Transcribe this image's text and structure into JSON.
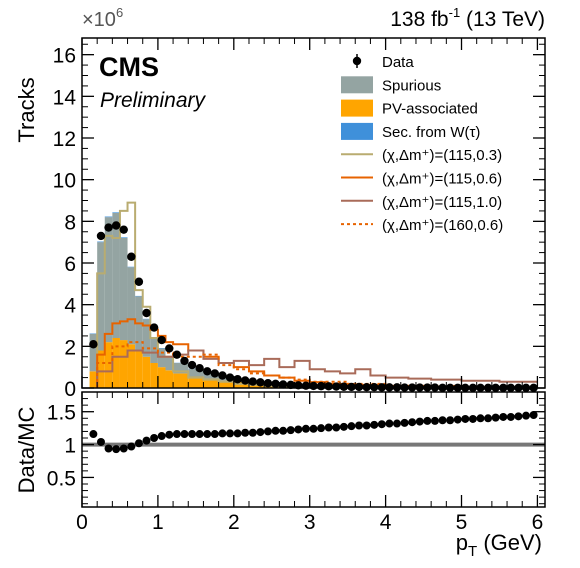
{
  "header": {
    "experiment": "CMS",
    "status": "Preliminary",
    "lumi": "138 fb",
    "lumi_sup": "-1",
    "lumi_energy": " (13 TeV)"
  },
  "chart_data": [
    {
      "type": "bar",
      "panel": "main",
      "ylabel": "Tracks",
      "y_multiplier_base": "×10",
      "y_multiplier_exp": "6",
      "xlim": [
        0,
        6.1
      ],
      "ylim": [
        0,
        16.8
      ],
      "x_ticks": [
        0,
        1,
        2,
        3,
        4,
        5,
        6
      ],
      "y_ticks": [
        0,
        2,
        4,
        6,
        8,
        10,
        12,
        14,
        16
      ],
      "bin_edges": [
        0.1,
        0.2,
        0.3,
        0.4,
        0.5,
        0.6,
        0.7,
        0.8,
        0.9,
        1.0,
        1.1,
        1.2,
        1.4,
        1.6,
        1.8,
        2.0,
        2.2,
        2.4,
        2.6,
        2.8,
        3.0,
        3.3,
        3.6,
        4.0,
        4.5,
        5.0,
        6.0
      ],
      "stacked_series": [
        {
          "name": "PV-associated",
          "color": "#ffa500",
          "values": [
            0.8,
            1.8,
            2.2,
            2.4,
            2.3,
            2.1,
            1.8,
            1.5,
            1.2,
            1.0,
            0.85,
            0.7,
            0.55,
            0.45,
            0.35,
            0.28,
            0.22,
            0.18,
            0.14,
            0.11,
            0.08,
            0.06,
            0.04,
            0.03,
            0.02,
            0.01
          ]
        },
        {
          "name": "Spurious",
          "color": "#94a4a2",
          "values": [
            1.8,
            5.2,
            6.0,
            6.0,
            4.9,
            3.7,
            2.6,
            1.8,
            1.2,
            0.9,
            0.65,
            0.5,
            0.38,
            0.28,
            0.2,
            0.15,
            0.11,
            0.08,
            0.06,
            0.05,
            0.04,
            0.03,
            0.02,
            0.02,
            0.01,
            0.01
          ]
        },
        {
          "name": "Sec. from W(τ)",
          "color": "#3f90da",
          "values": [
            0.02,
            0.03,
            0.03,
            0.03,
            0.03,
            0.02,
            0.02,
            0.02,
            0.02,
            0.02,
            0.01,
            0.01,
            0.01,
            0.01,
            0.01,
            0.01,
            0.01,
            0.01,
            0.01,
            0.01,
            0.01,
            0.01,
            0.01,
            0.01,
            0.01,
            0.01
          ]
        }
      ],
      "data_points": {
        "name": "Data",
        "x": [
          0.15,
          0.25,
          0.35,
          0.45,
          0.55,
          0.65,
          0.75,
          0.85,
          0.95,
          1.05,
          1.15,
          1.25,
          1.35,
          1.45,
          1.55,
          1.65,
          1.75,
          1.85,
          1.95,
          2.05,
          2.15,
          2.25,
          2.35,
          2.45,
          2.55,
          2.65,
          2.75,
          2.85,
          2.95,
          3.05,
          3.15,
          3.25,
          3.35,
          3.45,
          3.55,
          3.65,
          3.75,
          3.85,
          3.95,
          4.05,
          4.15,
          4.25,
          4.35,
          4.45,
          4.55,
          4.65,
          4.75,
          4.85,
          4.95,
          5.05,
          5.15,
          5.25,
          5.35,
          5.45,
          5.55,
          5.65,
          5.75,
          5.85,
          5.95
        ],
        "y": [
          2.1,
          7.3,
          7.7,
          7.8,
          7.6,
          6.3,
          5.1,
          3.6,
          2.9,
          2.3,
          1.9,
          1.6,
          1.3,
          1.1,
          0.95,
          0.8,
          0.7,
          0.6,
          0.5,
          0.42,
          0.36,
          0.31,
          0.27,
          0.23,
          0.2,
          0.17,
          0.15,
          0.13,
          0.11,
          0.1,
          0.09,
          0.08,
          0.07,
          0.06,
          0.05,
          0.05,
          0.04,
          0.04,
          0.03,
          0.03,
          0.03,
          0.02,
          0.02,
          0.02,
          0.02,
          0.02,
          0.01,
          0.01,
          0.01,
          0.01,
          0.01,
          0.01,
          0.01,
          0.01,
          0.01,
          0.01,
          0.01,
          0.01,
          0.01
        ]
      },
      "signal_series": [
        {
          "name": "(χ,Δm⁺)=(115,0.3)",
          "color": "#b9ac70",
          "style": "solid",
          "bin_edges": [
            0.2,
            0.3,
            0.4,
            0.5,
            0.6,
            0.7,
            0.8,
            0.9,
            1.0,
            1.2,
            1.4,
            1.6,
            1.8,
            2.0,
            2.2,
            2.4,
            2.6,
            2.8,
            3.0,
            3.5,
            4.0,
            5.0,
            6.0
          ],
          "values": [
            5.5,
            7.3,
            7.2,
            8.5,
            8.9,
            4.7,
            3.9,
            2.4,
            1.5,
            0.8,
            0.5,
            0.4,
            0.3,
            0.2,
            0.15,
            0.1,
            0.08,
            0.06,
            0.05,
            0.03,
            0.02,
            0.01
          ]
        },
        {
          "name": "(χ,Δm⁺)=(115,0.6)",
          "color": "#e76300",
          "style": "solid",
          "bin_edges": [
            0.2,
            0.3,
            0.4,
            0.5,
            0.6,
            0.7,
            0.8,
            0.9,
            1.0,
            1.1,
            1.2,
            1.4,
            1.6,
            1.8,
            2.0,
            2.2,
            2.4,
            2.6,
            2.8,
            3.0,
            3.2,
            3.5,
            4.0,
            4.5,
            5.0,
            6.0
          ],
          "values": [
            1.6,
            2.6,
            3.1,
            3.2,
            3.3,
            3.1,
            3.0,
            2.8,
            2.5,
            2.2,
            2.1,
            1.8,
            1.5,
            1.2,
            1.0,
            0.8,
            0.6,
            0.5,
            0.35,
            0.28,
            0.2,
            0.15,
            0.1,
            0.06,
            0.03
          ]
        },
        {
          "name": "(χ,Δm⁺)=(115,1.0)",
          "color": "#a96b59",
          "style": "solid",
          "bin_edges": [
            0.2,
            0.4,
            0.6,
            0.8,
            1.0,
            1.2,
            1.4,
            1.6,
            1.8,
            2.0,
            2.2,
            2.4,
            2.6,
            2.8,
            3.0,
            3.2,
            3.4,
            3.6,
            3.8,
            4.0,
            4.3,
            4.6,
            5.0,
            5.5,
            6.0
          ],
          "values": [
            0.8,
            1.5,
            1.8,
            1.7,
            1.5,
            1.6,
            1.8,
            1.4,
            1.2,
            1.3,
            1.1,
            1.4,
            1.0,
            1.3,
            0.9,
            0.8,
            0.7,
            0.9,
            0.6,
            0.5,
            0.45,
            0.4,
            0.35,
            0.3
          ]
        },
        {
          "name": "(χ,Δm⁺)=(160,0.6)",
          "color": "#e76300",
          "style": "dotted",
          "bin_edges": [
            0.2,
            0.4,
            0.6,
            0.8,
            1.0,
            1.2,
            1.4,
            1.6,
            1.8,
            2.0,
            2.2,
            2.4,
            2.6,
            2.8,
            3.0,
            3.5,
            4.0,
            5.0,
            6.0
          ],
          "values": [
            1.2,
            2.0,
            2.2,
            1.9,
            1.7,
            1.5,
            1.5,
            1.6,
            1.1,
            0.9,
            0.7,
            0.6,
            0.5,
            0.4,
            0.3,
            0.2,
            0.1,
            0.05
          ]
        }
      ],
      "legend": [
        {
          "label": "Data",
          "kind": "marker"
        },
        {
          "label": "Spurious",
          "kind": "fill",
          "color": "#94a4a2"
        },
        {
          "label": "PV-associated",
          "kind": "fill",
          "color": "#ffa500"
        },
        {
          "label": "Sec. from W(τ)",
          "kind": "fill",
          "color": "#3f90da"
        },
        {
          "label": "(χ,Δm⁺)=(115,0.3)",
          "kind": "line",
          "color": "#b9ac70",
          "style": "solid"
        },
        {
          "label": "(χ,Δm⁺)=(115,0.6)",
          "kind": "line",
          "color": "#e76300",
          "style": "solid"
        },
        {
          "label": "(χ,Δm⁺)=(115,1.0)",
          "kind": "line",
          "color": "#a96b59",
          "style": "solid"
        },
        {
          "label": "(χ,Δm⁺)=(160,0.6)",
          "kind": "line",
          "color": "#e76300",
          "style": "dotted"
        }
      ],
      "legend_placement": "top-right"
    },
    {
      "type": "scatter",
      "panel": "ratio",
      "xlabel": "p",
      "xlabel_sub": "T",
      "xlabel_unit": " (GeV)",
      "ylabel": "Data/MC",
      "xlim": [
        0,
        6.1
      ],
      "ylim": [
        0.05,
        1.8
      ],
      "x_ticks": [
        0,
        1,
        2,
        3,
        4,
        5,
        6
      ],
      "y_ticks": [
        0.5,
        1,
        1.5
      ],
      "reference_line": 1,
      "x": [
        0.15,
        0.25,
        0.35,
        0.45,
        0.55,
        0.65,
        0.75,
        0.85,
        0.95,
        1.05,
        1.15,
        1.25,
        1.35,
        1.45,
        1.55,
        1.65,
        1.75,
        1.85,
        1.95,
        2.05,
        2.15,
        2.25,
        2.35,
        2.45,
        2.55,
        2.65,
        2.75,
        2.85,
        2.95,
        3.05,
        3.15,
        3.25,
        3.35,
        3.45,
        3.55,
        3.65,
        3.75,
        3.85,
        3.95,
        4.05,
        4.15,
        4.25,
        4.35,
        4.45,
        4.55,
        4.65,
        4.75,
        4.85,
        4.95,
        5.05,
        5.15,
        5.25,
        5.35,
        5.45,
        5.55,
        5.65,
        5.75,
        5.85,
        5.95
      ],
      "y": [
        1.16,
        1.04,
        0.94,
        0.93,
        0.94,
        0.97,
        1.02,
        1.06,
        1.1,
        1.13,
        1.15,
        1.16,
        1.16,
        1.16,
        1.16,
        1.16,
        1.16,
        1.17,
        1.17,
        1.17,
        1.18,
        1.18,
        1.19,
        1.2,
        1.21,
        1.21,
        1.22,
        1.23,
        1.24,
        1.24,
        1.25,
        1.26,
        1.26,
        1.27,
        1.28,
        1.29,
        1.29,
        1.3,
        1.31,
        1.32,
        1.32,
        1.33,
        1.34,
        1.35,
        1.36,
        1.36,
        1.37,
        1.37,
        1.38,
        1.39,
        1.39,
        1.4,
        1.4,
        1.41,
        1.42,
        1.42,
        1.43,
        1.44,
        1.45
      ]
    }
  ]
}
